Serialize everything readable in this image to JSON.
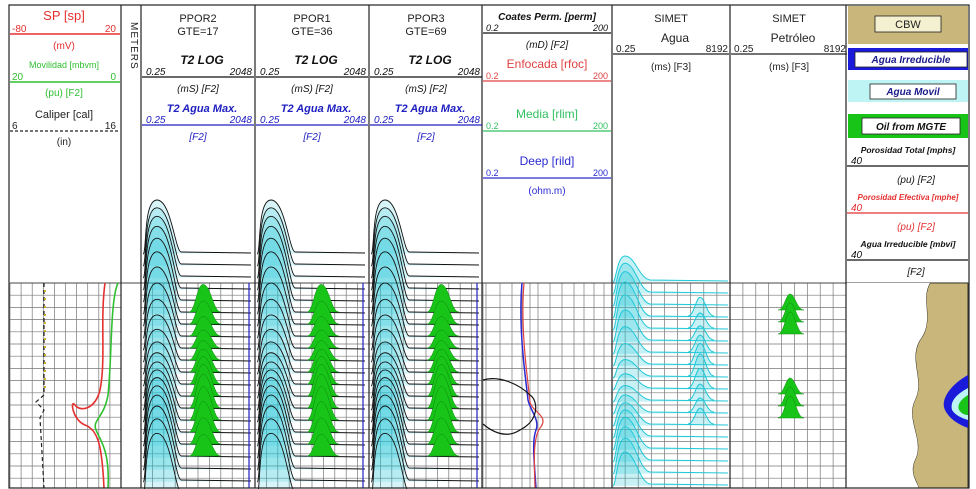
{
  "colors": {
    "sp": "#e53030",
    "movilidad": "#30c030",
    "caliper": "#222222",
    "t2": "#111111",
    "agua_max": "#2020c0",
    "fill_green": "#19c419",
    "fill_cyan": "#20c8d8",
    "cbw": "#c9b67a",
    "grid": "#888888",
    "deep": "#2a2ad0",
    "enfocada": "#e04040",
    "media": "#30c060"
  },
  "track1": {
    "sp": {
      "label": "SP [sp]",
      "min": "-80",
      "max": "20",
      "unit": "(mV)"
    },
    "movilidad": {
      "label": "Movilidad [mbvm]",
      "min": "20",
      "max": "0",
      "unit": "(pu) [F2]"
    },
    "caliper": {
      "label": "Caliper [cal]",
      "min": "6",
      "max": "16",
      "unit": "(in)"
    }
  },
  "depth": {
    "label": "METERS"
  },
  "t2_tracks": [
    {
      "title": "PPOR2",
      "gte": "GTE=17",
      "curve": "T2 LOG",
      "min": "0.25",
      "max": "2048",
      "unit": "(mS) [F2]",
      "agua": "T2 Agua Max.",
      "amin": "0.25",
      "amax": "2048",
      "aunit": "[F2]"
    },
    {
      "title": "PPOR1",
      "gte": "GTE=36",
      "curve": "T2 LOG",
      "min": "0.25",
      "max": "2048",
      "unit": "(mS) [F2]",
      "agua": "T2 Agua Max.",
      "amin": "0.25",
      "amax": "2048",
      "aunit": "[F2]"
    },
    {
      "title": "PPOR3",
      "gte": "GTE=69",
      "curve": "T2 LOG",
      "min": "0.25",
      "max": "2048",
      "unit": "(mS) [F2]",
      "agua": "T2 Agua Max.",
      "amin": "0.25",
      "amax": "2048",
      "aunit": "[F2]"
    }
  ],
  "resistivity": {
    "perm": {
      "label": "Coates Perm. [perm]",
      "min": "0.2",
      "max": "200",
      "unit": "(mD) [F2]"
    },
    "enfocada": {
      "label": "Enfocada [rfoc]",
      "min": "0.2",
      "max": "200"
    },
    "media": {
      "label": "Media [rlim]",
      "min": "0.2",
      "max": "200"
    },
    "deep": {
      "label": "Deep [rild]",
      "min": "0.2",
      "max": "200",
      "unit": "(ohm.m)"
    }
  },
  "simet": [
    {
      "title": "SIMET",
      "curve": "Agua",
      "min": "0.25",
      "max": "8192",
      "unit": "(ms) [F3]"
    },
    {
      "title": "SIMET",
      "curve": "Petróleo",
      "min": "0.25",
      "max": "8192",
      "unit": "(ms) [F3]"
    }
  ],
  "volumetrics": {
    "cbw": "CBW",
    "agua_irreducible": "Agua Irreducible",
    "agua_movil": "Agua Movil",
    "oil": "Oil  from MGTE",
    "porosidad_total": {
      "label": "Porosidad Total [mphs]",
      "min": "40",
      "unit": "(pu) [F2]"
    },
    "porosidad_efectiva": {
      "label": "Porosidad Efectiva [mphe]",
      "min": "40",
      "unit": "(pu) [F2]"
    },
    "agua_irr_curve": {
      "label": "Agua Irreducible [mbvi]",
      "min": "40",
      "unit": "[F2]"
    }
  },
  "chart_data": {
    "type": "line",
    "title": "",
    "tracks": [
      "SP / Movilidad / Caliper",
      "Depth (METERS)",
      "PPOR2 T2 LOG",
      "PPOR1 T2 LOG",
      "PPOR3 T2 LOG",
      "Resistivity / Coates Perm.",
      "SIMET Agua",
      "SIMET Petróleo",
      "CBW / Porosity volumetrics"
    ],
    "t2_distribution_depth_fractions": [
      0.0,
      0.18,
      0.34,
      0.5,
      0.66,
      0.8,
      0.92
    ],
    "grid": true
  }
}
